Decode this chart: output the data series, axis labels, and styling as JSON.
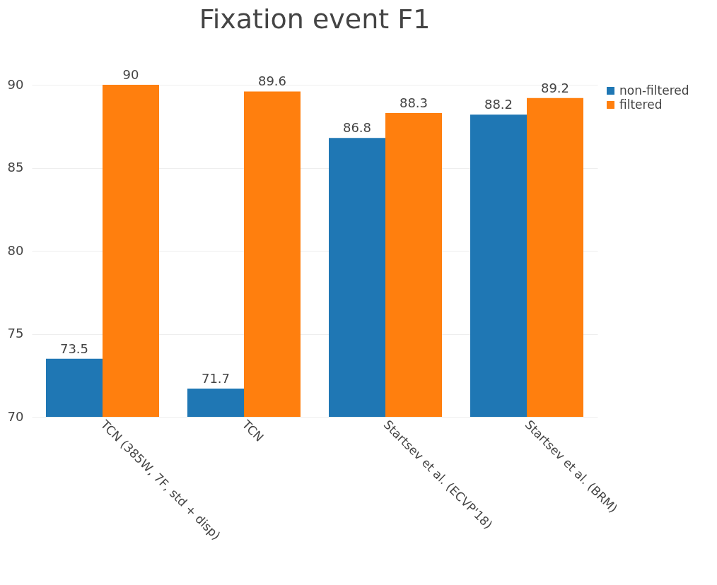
{
  "chart_data": {
    "type": "bar",
    "title": "Fixation event F1",
    "categories": [
      "TCN (385W, 7F, std + disp)",
      "TCN",
      "Startsev et al. (ECVP'18)",
      "Startsev et al. (BRM)"
    ],
    "series": [
      {
        "name": "non-filtered",
        "color": "#1f77b4",
        "values": [
          73.5,
          71.7,
          86.8,
          88.2
        ]
      },
      {
        "name": "filtered",
        "color": "#ff7f0e",
        "values": [
          90,
          89.6,
          88.3,
          89.2
        ]
      }
    ],
    "ylim": [
      70,
      90
    ],
    "yticks": [
      70,
      75,
      80,
      85,
      90
    ],
    "grid": "y",
    "legend": "top right",
    "data_labels": true
  }
}
